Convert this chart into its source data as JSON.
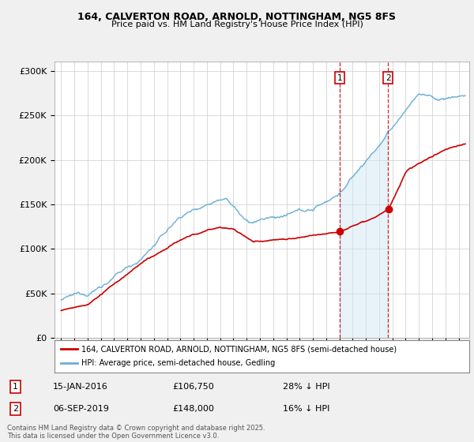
{
  "title_line1": "164, CALVERTON ROAD, ARNOLD, NOTTINGHAM, NG5 8FS",
  "title_line2": "Price paid vs. HM Land Registry's House Price Index (HPI)",
  "yticks": [
    0,
    50000,
    100000,
    150000,
    200000,
    250000,
    300000
  ],
  "ytick_labels": [
    "£0",
    "£50K",
    "£100K",
    "£150K",
    "£200K",
    "£250K",
    "£300K"
  ],
  "hpi_color": "#6baed6",
  "price_color": "#cc0000",
  "marker1_year": 2016.04,
  "marker1_price": 106750,
  "marker1_date": "15-JAN-2016",
  "marker1_label": "28% ↓ HPI",
  "marker2_year": 2019.68,
  "marker2_price": 148000,
  "marker2_date": "06-SEP-2019",
  "marker2_label": "16% ↓ HPI",
  "legend_line1": "164, CALVERTON ROAD, ARNOLD, NOTTINGHAM, NG5 8FS (semi-detached house)",
  "legend_line2": "HPI: Average price, semi-detached house, Gedling",
  "footnote": "Contains HM Land Registry data © Crown copyright and database right 2025.\nThis data is licensed under the Open Government Licence v3.0.",
  "background_color": "#f0f0f0",
  "plot_bg_color": "#ffffff",
  "shade_color": "#d0e8f5"
}
